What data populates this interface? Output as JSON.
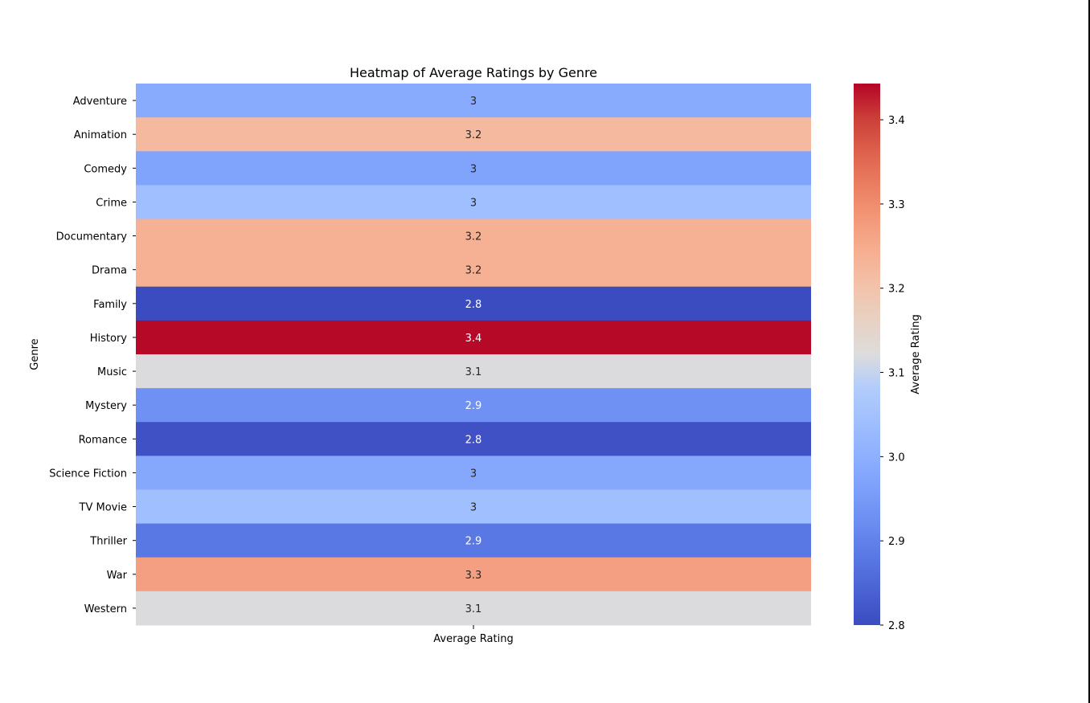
{
  "chart_data": {
    "type": "heatmap",
    "title": "Heatmap of Average Ratings by Genre",
    "xlabel": "",
    "ylabel": "Genre",
    "x_categories": [
      "Average Rating"
    ],
    "y_categories": [
      "Adventure",
      "Animation",
      "Comedy",
      "Crime",
      "Documentary",
      "Drama",
      "Family",
      "History",
      "Music",
      "Mystery",
      "Romance",
      "Science Fiction",
      "TV Movie",
      "Thriller",
      "War",
      "Western"
    ],
    "values": [
      2.99,
      3.22,
      2.97,
      3.04,
      3.24,
      3.24,
      2.8,
      3.44,
      3.12,
      2.93,
      2.81,
      2.98,
      3.04,
      2.88,
      3.27,
      3.12
    ],
    "annotations": [
      "3",
      "3.2",
      "3",
      "3",
      "3.2",
      "3.2",
      "2.8",
      "3.4",
      "3.1",
      "2.9",
      "2.8",
      "3",
      "3",
      "2.9",
      "3.3",
      "3.1"
    ],
    "colorbar": {
      "label": "Average Rating",
      "range": [
        2.8,
        3.443
      ],
      "ticks": [
        2.8,
        2.9,
        3.0,
        3.1,
        3.2,
        3.3,
        3.4
      ],
      "tick_labels": [
        "2.8",
        "2.9",
        "3.0",
        "3.1",
        "3.2",
        "3.3",
        "3.4"
      ],
      "colormap": "coolwarm"
    },
    "grid": false
  }
}
